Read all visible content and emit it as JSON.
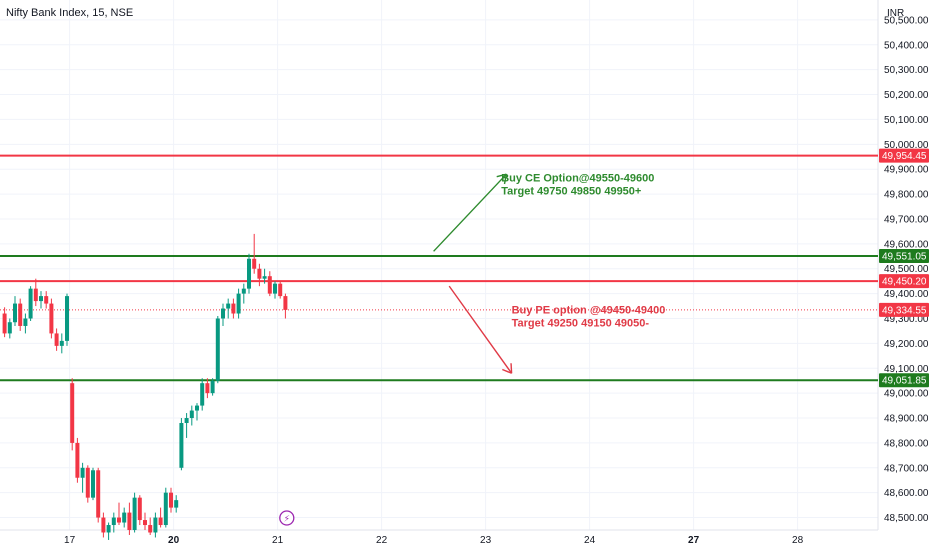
{
  "header": {
    "symbol": "Nifty Bank Index, 15, NSE",
    "currency": "INR"
  },
  "colors": {
    "up": "#089981",
    "down": "#f23645",
    "level_red": "#f23645",
    "level_green": "#1e7b1e",
    "annot_green": "#2e8b2e",
    "annot_red": "#e03a46",
    "grid": "#f0f3fa",
    "axis_text": "#131722"
  },
  "chart_data": {
    "type": "candlestick",
    "title": "Nifty Bank Index, 15, NSE",
    "ylim": [
      48450,
      50580
    ],
    "y_ticks": [
      {
        "value": 50500,
        "label": "50,500.00"
      },
      {
        "value": 50400,
        "label": "50,400.00"
      },
      {
        "value": 50300,
        "label": "50,300.00"
      },
      {
        "value": 50200,
        "label": "50,200.00"
      },
      {
        "value": 50100,
        "label": "50,100.00"
      },
      {
        "value": 50000,
        "label": "50,000.00"
      },
      {
        "value": 49900,
        "label": "49,900.00"
      },
      {
        "value": 49800,
        "label": "49,800.00"
      },
      {
        "value": 49700,
        "label": "49,700.00"
      },
      {
        "value": 49600,
        "label": "49,600.00"
      },
      {
        "value": 49500,
        "label": "49,500.00"
      },
      {
        "value": 49400,
        "label": "49,400.00"
      },
      {
        "value": 49300,
        "label": "49,300.00"
      },
      {
        "value": 49200,
        "label": "49,200.00"
      },
      {
        "value": 49100,
        "label": "49,100.00"
      },
      {
        "value": 49000,
        "label": "49,000.00"
      },
      {
        "value": 48900,
        "label": "48,900.00"
      },
      {
        "value": 48800,
        "label": "48,800.00"
      },
      {
        "value": 48700,
        "label": "48,700.00"
      },
      {
        "value": 48600,
        "label": "48,600.00"
      },
      {
        "value": 48500,
        "label": "48,500.00"
      }
    ],
    "x_ticks": [
      {
        "label": "17",
        "bar": 13,
        "bold": false
      },
      {
        "label": "20",
        "bar": 33,
        "bold": true
      },
      {
        "label": "21",
        "bar": 53,
        "bold": false
      },
      {
        "label": "22",
        "bar": 73,
        "bold": false
      },
      {
        "label": "23",
        "bar": 93,
        "bold": false
      },
      {
        "label": "24",
        "bar": 113,
        "bold": false
      },
      {
        "label": "27",
        "bar": 133,
        "bold": true
      },
      {
        "label": "28",
        "bar": 153,
        "bold": false
      }
    ],
    "candles": [
      {
        "o": 49320,
        "h": 49345,
        "l": 49225,
        "c": 49240
      },
      {
        "o": 49240,
        "h": 49300,
        "l": 49220,
        "c": 49285
      },
      {
        "o": 49285,
        "h": 49390,
        "l": 49270,
        "c": 49360
      },
      {
        "o": 49360,
        "h": 49380,
        "l": 49250,
        "c": 49270
      },
      {
        "o": 49270,
        "h": 49320,
        "l": 49240,
        "c": 49300
      },
      {
        "o": 49300,
        "h": 49430,
        "l": 49290,
        "c": 49420
      },
      {
        "o": 49420,
        "h": 49460,
        "l": 49350,
        "c": 49370
      },
      {
        "o": 49370,
        "h": 49410,
        "l": 49340,
        "c": 49390
      },
      {
        "o": 49390,
        "h": 49410,
        "l": 49340,
        "c": 49360
      },
      {
        "o": 49360,
        "h": 49380,
        "l": 49220,
        "c": 49240
      },
      {
        "o": 49240,
        "h": 49260,
        "l": 49170,
        "c": 49190
      },
      {
        "o": 49190,
        "h": 49240,
        "l": 49160,
        "c": 49210
      },
      {
        "o": 49210,
        "h": 49400,
        "l": 49190,
        "c": 49390
      },
      {
        "o": 49040,
        "h": 49060,
        "l": 48770,
        "c": 48800
      },
      {
        "o": 48800,
        "h": 48820,
        "l": 48640,
        "c": 48660
      },
      {
        "o": 48660,
        "h": 48720,
        "l": 48600,
        "c": 48700
      },
      {
        "o": 48700,
        "h": 48710,
        "l": 48560,
        "c": 48580
      },
      {
        "o": 48580,
        "h": 48700,
        "l": 48570,
        "c": 48690
      },
      {
        "o": 48690,
        "h": 48700,
        "l": 48480,
        "c": 48500
      },
      {
        "o": 48500,
        "h": 48520,
        "l": 48420,
        "c": 48440
      },
      {
        "o": 48440,
        "h": 48480,
        "l": 48410,
        "c": 48470
      },
      {
        "o": 48470,
        "h": 48520,
        "l": 48440,
        "c": 48500
      },
      {
        "o": 48500,
        "h": 48560,
        "l": 48470,
        "c": 48480
      },
      {
        "o": 48480,
        "h": 48540,
        "l": 48460,
        "c": 48520
      },
      {
        "o": 48520,
        "h": 48560,
        "l": 48430,
        "c": 48450
      },
      {
        "o": 48450,
        "h": 48600,
        "l": 48440,
        "c": 48580
      },
      {
        "o": 48580,
        "h": 48590,
        "l": 48470,
        "c": 48490
      },
      {
        "o": 48490,
        "h": 48520,
        "l": 48450,
        "c": 48470
      },
      {
        "o": 48470,
        "h": 48500,
        "l": 48430,
        "c": 48440
      },
      {
        "o": 48440,
        "h": 48520,
        "l": 48420,
        "c": 48500
      },
      {
        "o": 48500,
        "h": 48540,
        "l": 48460,
        "c": 48470
      },
      {
        "o": 48470,
        "h": 48620,
        "l": 48460,
        "c": 48600
      },
      {
        "o": 48600,
        "h": 48620,
        "l": 48520,
        "c": 48540
      },
      {
        "o": 48540,
        "h": 48590,
        "l": 48520,
        "c": 48570
      },
      {
        "o": 48700,
        "h": 48900,
        "l": 48690,
        "c": 48880
      },
      {
        "o": 48880,
        "h": 48920,
        "l": 48820,
        "c": 48900
      },
      {
        "o": 48900,
        "h": 48950,
        "l": 48870,
        "c": 48930
      },
      {
        "o": 48930,
        "h": 48960,
        "l": 48890,
        "c": 48950
      },
      {
        "o": 48950,
        "h": 49060,
        "l": 48930,
        "c": 49040
      },
      {
        "o": 49040,
        "h": 49060,
        "l": 48980,
        "c": 49000
      },
      {
        "o": 49000,
        "h": 49060,
        "l": 48990,
        "c": 49050
      },
      {
        "o": 49050,
        "h": 49310,
        "l": 49040,
        "c": 49300
      },
      {
        "o": 49300,
        "h": 49360,
        "l": 49270,
        "c": 49340
      },
      {
        "o": 49340,
        "h": 49380,
        "l": 49300,
        "c": 49360
      },
      {
        "o": 49360,
        "h": 49380,
        "l": 49300,
        "c": 49320
      },
      {
        "o": 49320,
        "h": 49420,
        "l": 49300,
        "c": 49400
      },
      {
        "o": 49400,
        "h": 49440,
        "l": 49360,
        "c": 49420
      },
      {
        "o": 49420,
        "h": 49560,
        "l": 49400,
        "c": 49540
      },
      {
        "o": 49540,
        "h": 49640,
        "l": 49480,
        "c": 49500
      },
      {
        "o": 49500,
        "h": 49520,
        "l": 49430,
        "c": 49460
      },
      {
        "o": 49460,
        "h": 49500,
        "l": 49440,
        "c": 49470
      },
      {
        "o": 49470,
        "h": 49490,
        "l": 49390,
        "c": 49400
      },
      {
        "o": 49400,
        "h": 49450,
        "l": 49380,
        "c": 49440
      },
      {
        "o": 49440,
        "h": 49450,
        "l": 49380,
        "c": 49390
      },
      {
        "o": 49390,
        "h": 49400,
        "l": 49300,
        "c": 49334.55
      }
    ],
    "levels": [
      {
        "value": 49954.45,
        "label": "49,954.45",
        "color": "#f23645",
        "width": 2
      },
      {
        "value": 49551.05,
        "label": "49,551.05",
        "color": "#1e7b1e",
        "width": 2
      },
      {
        "value": 49450.2,
        "label": "49,450.20",
        "color": "#f23645",
        "width": 2
      },
      {
        "value": 49334.55,
        "label": "49,334.55",
        "color": "#f23645",
        "width": 1,
        "dotted": true
      },
      {
        "value": 49051.85,
        "label": "49,051.85",
        "color": "#1e7b1e",
        "width": 2
      }
    ],
    "annotations": [
      {
        "lines": [
          "Buy CE Option@49550-49600",
          "Target 49750 49850 49950+"
        ],
        "color": "#2e8b2e",
        "bar": 96,
        "value": 49850
      },
      {
        "lines": [
          "Buy PE option @49450-49400",
          "Target 49250 49150 49050-"
        ],
        "color": "#e03a46",
        "bar": 98,
        "value": 49320
      }
    ],
    "arrows": [
      {
        "from_bar": 83,
        "from_value": 49570,
        "to_bar": 97,
        "to_value": 49880,
        "color": "#2e8b2e"
      },
      {
        "from_bar": 86,
        "from_value": 49430,
        "to_bar": 98,
        "to_value": 49080,
        "color": "#e03a46"
      }
    ],
    "event_marker": {
      "bar": 54,
      "symbol": "⚡",
      "color": "#9c27b0"
    }
  }
}
